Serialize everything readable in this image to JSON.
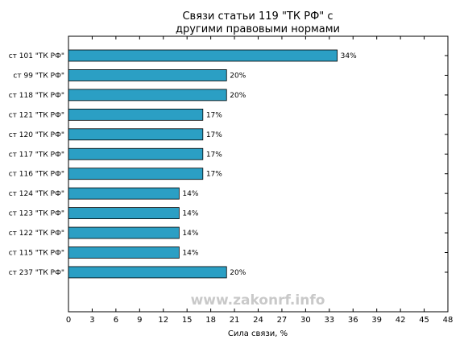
{
  "chart_data": {
    "type": "bar",
    "orientation": "horizontal",
    "title_line1": "Связи статьи 119 \"ТК РФ\" с",
    "title_line2": "другими правовыми нормами",
    "xlabel": "Сила связи, %",
    "xlim": [
      0,
      48
    ],
    "xticks": [
      0,
      3,
      6,
      9,
      12,
      15,
      18,
      21,
      24,
      27,
      30,
      33,
      36,
      39,
      42,
      45,
      48
    ],
    "categories": [
      "ст 101 \"ТК РФ\"",
      "ст 99 \"ТК РФ\"",
      "ст 118 \"ТК РФ\"",
      "ст 121 \"ТК РФ\"",
      "ст 120 \"ТК РФ\"",
      "ст 117 \"ТК РФ\"",
      "ст 116 \"ТК РФ\"",
      "ст 124 \"ТК РФ\"",
      "ст 123 \"ТК РФ\"",
      "ст 122 \"ТК РФ\"",
      "ст 115 \"ТК РФ\"",
      "ст 237 \"ТК РФ\""
    ],
    "values": [
      34,
      20,
      20,
      17,
      17,
      17,
      17,
      14,
      14,
      14,
      14,
      20
    ],
    "value_labels": [
      "34%",
      "20%",
      "20%",
      "17%",
      "17%",
      "17%",
      "17%",
      "14%",
      "14%",
      "14%",
      "14%",
      "20%"
    ],
    "bar_color": "#2b9fc4",
    "grid": false,
    "watermark": "www.zakonrf.info"
  }
}
